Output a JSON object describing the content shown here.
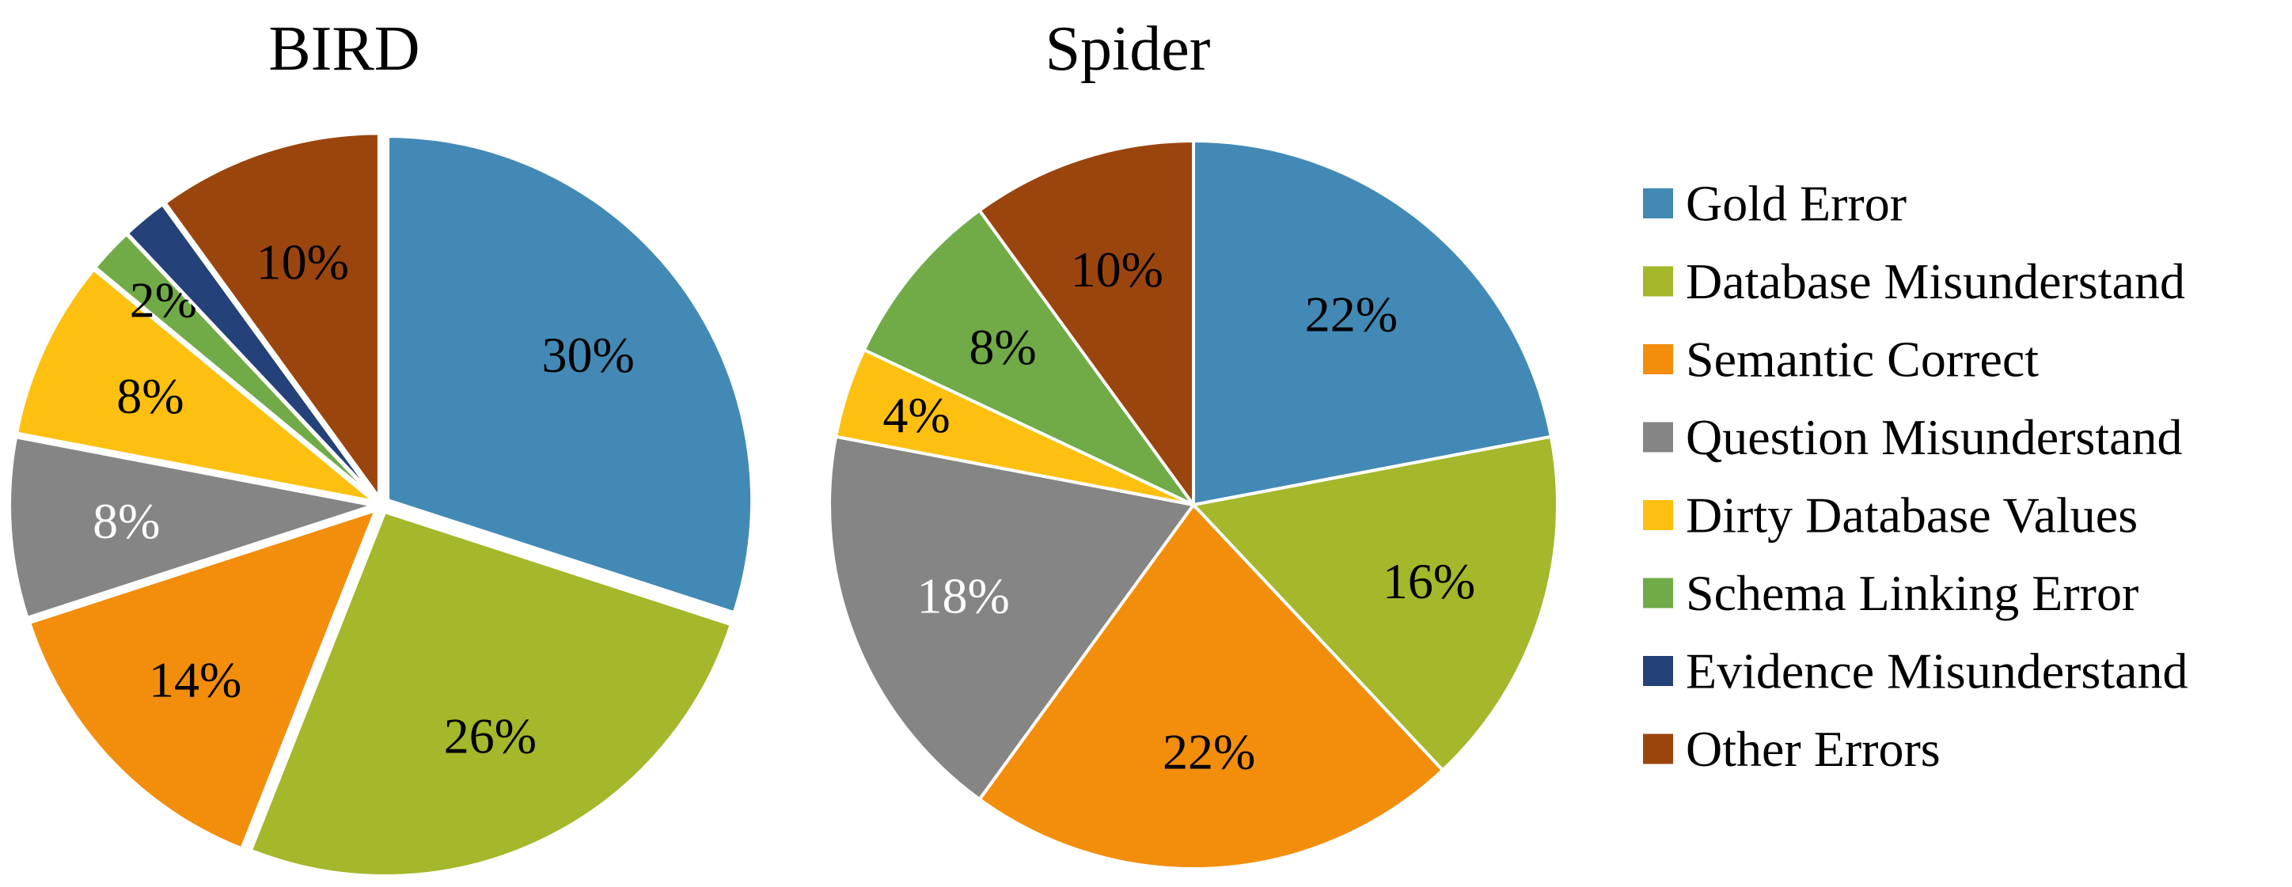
{
  "chart_data": [
    {
      "type": "pie",
      "title": "BIRD",
      "exploded": true,
      "slices": [
        {
          "category": "Gold Error",
          "value": 30,
          "label": "30%"
        },
        {
          "category": "Database Misunderstand",
          "value": 26,
          "label": "26%"
        },
        {
          "category": "Semantic Correct",
          "value": 14,
          "label": "14%"
        },
        {
          "category": "Question Misunderstand",
          "value": 8,
          "label": "8%"
        },
        {
          "category": "Dirty Database Values",
          "value": 8,
          "label": "8%"
        },
        {
          "category": "Schema Linking Error",
          "value": 2,
          "label": "2%"
        },
        {
          "category": "Evidence Misunderstand",
          "value": 2,
          "label": ""
        },
        {
          "category": "Other Errors",
          "value": 10,
          "label": "10%"
        }
      ]
    },
    {
      "type": "pie",
      "title": "Spider",
      "exploded": false,
      "slices": [
        {
          "category": "Gold Error",
          "value": 22,
          "label": "22%"
        },
        {
          "category": "Database Misunderstand",
          "value": 16,
          "label": "16%"
        },
        {
          "category": "Semantic Correct",
          "value": 22,
          "label": "22%"
        },
        {
          "category": "Question Misunderstand",
          "value": 18,
          "label": "18%"
        },
        {
          "category": "Dirty Database Values",
          "value": 4,
          "label": "4%"
        },
        {
          "category": "Schema Linking Error",
          "value": 8,
          "label": "8%"
        },
        {
          "category": "Other Errors",
          "value": 10,
          "label": "10%"
        }
      ]
    }
  ],
  "legend": {
    "position": "right",
    "items": [
      {
        "label": "Gold Error",
        "color": "#4389B5"
      },
      {
        "label": "Database Misunderstand",
        "color": "#A5B72A"
      },
      {
        "label": "Semantic Correct",
        "color": "#F28E0C"
      },
      {
        "label": "Question Misunderstand",
        "color": "#858585"
      },
      {
        "label": "Dirty Database Values",
        "color": "#FDC010"
      },
      {
        "label": "Schema Linking Error",
        "color": "#70AB47"
      },
      {
        "label": "Evidence Misunderstand",
        "color": "#244279"
      },
      {
        "label": "Other Errors",
        "color": "#9B450E"
      }
    ]
  },
  "label_colors": {
    "Gold Error": "#000000",
    "Database Misunderstand": "#000000",
    "Semantic Correct": "#000000",
    "Question Misunderstand": "#FFFFFF",
    "Dirty Database Values": "#000000",
    "Schema Linking Error": "#000000",
    "Evidence Misunderstand": "#FFFFFF",
    "Other Errors": "#000000"
  }
}
